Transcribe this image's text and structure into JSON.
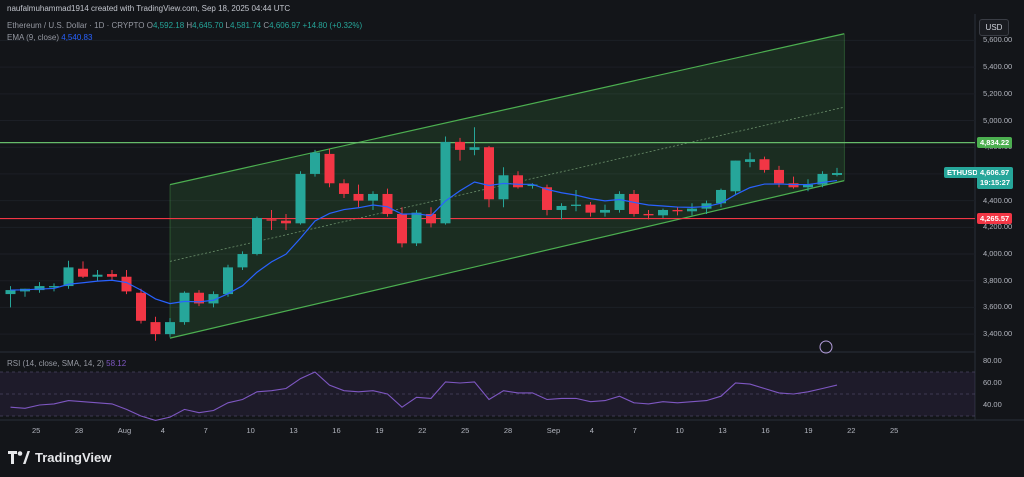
{
  "header": {
    "author_line": "naufalmuhammad1914 created with TradingView.com, Sep 18, 2025 04:44 UTC"
  },
  "legend": {
    "symbol": "Ethereum / U.S. Dollar · 1D · CRYPTO",
    "o_label": "O",
    "o": "4,592.18",
    "h_label": "H",
    "h": "4,645.70",
    "l_label": "L",
    "l": "4,581.74",
    "c_label": "C",
    "c": "4,606.97",
    "change": "+14.80 (+0.32%)",
    "ema_label": "EMA (9, close)",
    "ema_value": "4,540.83"
  },
  "currency_button": "USD",
  "price_axis": [
    "5,600.00",
    "5,400.00",
    "5,200.00",
    "5,000.00",
    "4,800.00",
    "4,600.00",
    "4,400.00",
    "4,200.00",
    "4,000.00",
    "3,800.00",
    "3,600.00",
    "3,400.00"
  ],
  "tags": {
    "resistance": "4,834.22",
    "support": "4,265.57",
    "symbol": "ETHUSD",
    "last_price": "4,606.97",
    "countdown": "19:15:27"
  },
  "rsi": {
    "label": "RSI (14, close, SMA, 14, 2)",
    "value": "58.12",
    "axis": [
      "80.00",
      "60.00",
      "40.00"
    ]
  },
  "time_axis": [
    "25",
    "28",
    "Aug",
    "4",
    "7",
    "10",
    "13",
    "16",
    "19",
    "22",
    "25",
    "28",
    "Sep",
    "4",
    "7",
    "10",
    "13",
    "16",
    "19",
    "22",
    "25"
  ],
  "brand": "TradingView",
  "colors": {
    "up": "#26a69a",
    "down": "#f23645",
    "channel": "#4caf50",
    "resistance": "#66bb6a",
    "support": "#f23645",
    "ema": "#2962ff",
    "rsi": "#7e57c2"
  },
  "chart_data": {
    "type": "candlestick",
    "symbol": "ETHUSD",
    "interval": "1D",
    "x_ticks": [
      "25",
      "28",
      "Aug",
      "4",
      "7",
      "10",
      "13",
      "16",
      "19",
      "22",
      "25",
      "28",
      "Sep",
      "4",
      "7",
      "10",
      "13",
      "16",
      "19",
      "22",
      "25"
    ],
    "ylim": [
      3250,
      5720
    ],
    "resistance_level": 4834.22,
    "support_level": 4265.57,
    "candles": [
      {
        "o": 3700,
        "h": 3760,
        "l": 3600,
        "c": 3730
      },
      {
        "o": 3720,
        "h": 3740,
        "l": 3680,
        "c": 3740
      },
      {
        "o": 3730,
        "h": 3790,
        "l": 3710,
        "c": 3760
      },
      {
        "o": 3750,
        "h": 3780,
        "l": 3720,
        "c": 3760
      },
      {
        "o": 3760,
        "h": 3950,
        "l": 3740,
        "c": 3900
      },
      {
        "o": 3890,
        "h": 3945,
        "l": 3820,
        "c": 3830
      },
      {
        "o": 3830,
        "h": 3880,
        "l": 3800,
        "c": 3845
      },
      {
        "o": 3850,
        "h": 3880,
        "l": 3800,
        "c": 3830
      },
      {
        "o": 3830,
        "h": 3880,
        "l": 3700,
        "c": 3720
      },
      {
        "o": 3710,
        "h": 3740,
        "l": 3480,
        "c": 3500
      },
      {
        "o": 3490,
        "h": 3530,
        "l": 3350,
        "c": 3400
      },
      {
        "o": 3400,
        "h": 3520,
        "l": 3380,
        "c": 3490
      },
      {
        "o": 3490,
        "h": 3720,
        "l": 3470,
        "c": 3710
      },
      {
        "o": 3710,
        "h": 3730,
        "l": 3610,
        "c": 3630
      },
      {
        "o": 3630,
        "h": 3720,
        "l": 3600,
        "c": 3700
      },
      {
        "o": 3700,
        "h": 3920,
        "l": 3680,
        "c": 3900
      },
      {
        "o": 3900,
        "h": 4020,
        "l": 3880,
        "c": 4000
      },
      {
        "o": 4000,
        "h": 4280,
        "l": 3990,
        "c": 4270
      },
      {
        "o": 4260,
        "h": 4330,
        "l": 4180,
        "c": 4250
      },
      {
        "o": 4250,
        "h": 4300,
        "l": 4180,
        "c": 4230
      },
      {
        "o": 4230,
        "h": 4620,
        "l": 4220,
        "c": 4600
      },
      {
        "o": 4600,
        "h": 4780,
        "l": 4580,
        "c": 4760
      },
      {
        "o": 4750,
        "h": 4790,
        "l": 4500,
        "c": 4530
      },
      {
        "o": 4530,
        "h": 4560,
        "l": 4420,
        "c": 4450
      },
      {
        "o": 4450,
        "h": 4520,
        "l": 4350,
        "c": 4400
      },
      {
        "o": 4400,
        "h": 4470,
        "l": 4330,
        "c": 4450
      },
      {
        "o": 4450,
        "h": 4490,
        "l": 4280,
        "c": 4300
      },
      {
        "o": 4300,
        "h": 4350,
        "l": 4050,
        "c": 4080
      },
      {
        "o": 4080,
        "h": 4330,
        "l": 4060,
        "c": 4310
      },
      {
        "o": 4300,
        "h": 4350,
        "l": 4200,
        "c": 4230
      },
      {
        "o": 4230,
        "h": 4880,
        "l": 4220,
        "c": 4840
      },
      {
        "o": 4840,
        "h": 4870,
        "l": 4700,
        "c": 4780
      },
      {
        "o": 4780,
        "h": 4950,
        "l": 4740,
        "c": 4800
      },
      {
        "o": 4800,
        "h": 4810,
        "l": 4350,
        "c": 4410
      },
      {
        "o": 4410,
        "h": 4650,
        "l": 4350,
        "c": 4590
      },
      {
        "o": 4590,
        "h": 4620,
        "l": 4490,
        "c": 4500
      },
      {
        "o": 4510,
        "h": 4530,
        "l": 4490,
        "c": 4520
      },
      {
        "o": 4500,
        "h": 4520,
        "l": 4290,
        "c": 4330
      },
      {
        "o": 4330,
        "h": 4380,
        "l": 4260,
        "c": 4360
      },
      {
        "o": 4360,
        "h": 4480,
        "l": 4320,
        "c": 4370
      },
      {
        "o": 4370,
        "h": 4390,
        "l": 4280,
        "c": 4310
      },
      {
        "o": 4310,
        "h": 4370,
        "l": 4280,
        "c": 4330
      },
      {
        "o": 4330,
        "h": 4470,
        "l": 4310,
        "c": 4450
      },
      {
        "o": 4450,
        "h": 4480,
        "l": 4280,
        "c": 4300
      },
      {
        "o": 4300,
        "h": 4330,
        "l": 4260,
        "c": 4290
      },
      {
        "o": 4290,
        "h": 4340,
        "l": 4270,
        "c": 4330
      },
      {
        "o": 4330,
        "h": 4350,
        "l": 4290,
        "c": 4320
      },
      {
        "o": 4320,
        "h": 4380,
        "l": 4290,
        "c": 4340
      },
      {
        "o": 4340,
        "h": 4400,
        "l": 4300,
        "c": 4380
      },
      {
        "o": 4380,
        "h": 4490,
        "l": 4350,
        "c": 4480
      },
      {
        "o": 4470,
        "h": 4700,
        "l": 4440,
        "c": 4700
      },
      {
        "o": 4690,
        "h": 4760,
        "l": 4650,
        "c": 4710
      },
      {
        "o": 4710,
        "h": 4730,
        "l": 4610,
        "c": 4630
      },
      {
        "o": 4630,
        "h": 4660,
        "l": 4500,
        "c": 4530
      },
      {
        "o": 4530,
        "h": 4580,
        "l": 4490,
        "c": 4500
      },
      {
        "o": 4500,
        "h": 4560,
        "l": 4470,
        "c": 4520
      },
      {
        "o": 4520,
        "h": 4620,
        "l": 4500,
        "c": 4600
      },
      {
        "o": 4592.18,
        "h": 4645.7,
        "l": 4581.74,
        "c": 4606.97
      }
    ],
    "channel": {
      "upper": [
        {
          "i": 11,
          "p": 4520
        },
        {
          "i": 57.5,
          "p": 5650
        }
      ],
      "lower": [
        {
          "i": 11,
          "p": 3370
        },
        {
          "i": 57.5,
          "p": 4550
        }
      ]
    },
    "rsi": [
      38,
      37,
      40,
      41,
      44,
      43,
      42,
      41,
      36,
      30,
      26,
      29,
      36,
      33,
      35,
      42,
      45,
      52,
      53,
      55,
      64,
      70,
      58,
      53,
      52,
      53,
      50,
      38,
      47,
      46,
      61,
      60,
      61,
      45,
      53,
      51,
      51,
      45,
      46,
      46,
      43,
      44,
      48,
      42,
      41,
      43,
      42,
      43,
      44,
      48,
      60,
      59,
      55,
      51,
      50,
      52,
      55,
      58.12
    ]
  }
}
